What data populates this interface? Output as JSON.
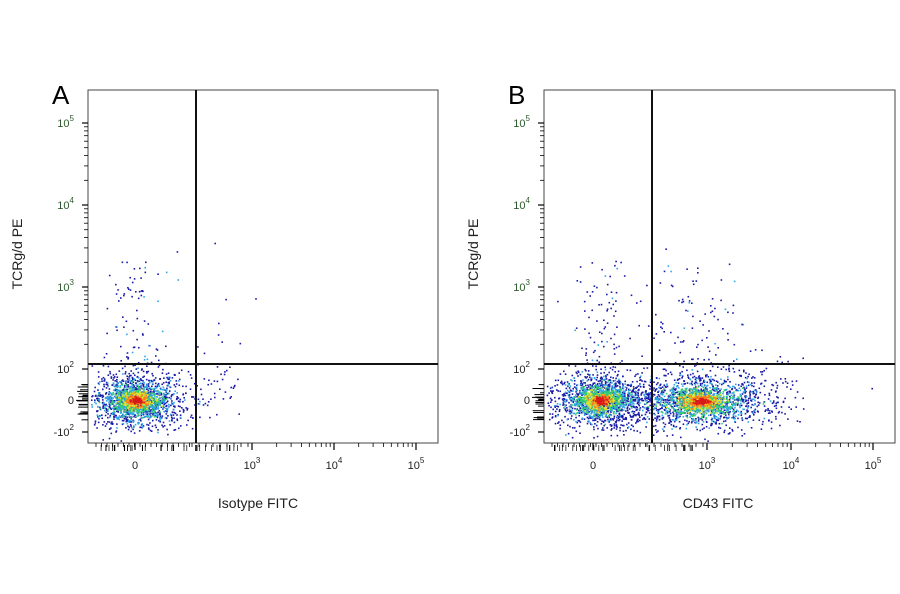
{
  "chart_data": [
    {
      "type": "scatter",
      "panel_label": "A",
      "xlabel": "Isotype FITC",
      "ylabel": "TCRg/d PE",
      "x_ticks": [
        {
          "base": "0",
          "exp": ""
        },
        {
          "base": "10",
          "exp": "3"
        },
        {
          "base": "10",
          "exp": "4"
        },
        {
          "base": "10",
          "exp": "5"
        }
      ],
      "y_ticks": [
        {
          "base": "-10",
          "exp": "2"
        },
        {
          "base": "0",
          "exp": ""
        },
        {
          "base": "10",
          "exp": "2"
        },
        {
          "base": "10",
          "exp": "3"
        },
        {
          "base": "10",
          "exp": "4"
        },
        {
          "base": "10",
          "exp": "5"
        }
      ],
      "x_scale": "biexponential",
      "y_scale": "biexponential",
      "gates": {
        "x": 300,
        "y": 100
      },
      "populations": [
        {
          "name": "main",
          "x": 0,
          "y": 0,
          "x_spread": 0.45,
          "y_spread": 0.3,
          "density": "high"
        }
      ],
      "dot_colors": [
        "#1a1aa6",
        "#2fa7e6",
        "#35d06a",
        "#e6e02a",
        "#ff7a1a",
        "#d81a1a"
      ]
    },
    {
      "type": "scatter",
      "panel_label": "B",
      "xlabel": "CD43 FITC",
      "ylabel": "TCRg/d PE",
      "x_ticks": [
        {
          "base": "0",
          "exp": ""
        },
        {
          "base": "10",
          "exp": "3"
        },
        {
          "base": "10",
          "exp": "4"
        },
        {
          "base": "10",
          "exp": "5"
        }
      ],
      "y_ticks": [
        {
          "base": "-10",
          "exp": "2"
        },
        {
          "base": "0",
          "exp": ""
        },
        {
          "base": "10",
          "exp": "2"
        },
        {
          "base": "10",
          "exp": "3"
        },
        {
          "base": "10",
          "exp": "4"
        },
        {
          "base": "10",
          "exp": "5"
        }
      ],
      "x_scale": "biexponential",
      "y_scale": "biexponential",
      "gates": {
        "x": 300,
        "y": 100
      },
      "populations": [
        {
          "name": "negative",
          "x": 0,
          "y": 0,
          "x_spread": 0.45,
          "y_spread": 0.3,
          "density": "high"
        },
        {
          "name": "positive",
          "x": 900,
          "y": 0,
          "x_spread": 0.55,
          "y_spread": 0.3,
          "density": "high"
        }
      ],
      "dot_colors": [
        "#1a1aa6",
        "#2fa7e6",
        "#35d06a",
        "#e6e02a",
        "#ff7a1a",
        "#d81a1a"
      ]
    }
  ]
}
